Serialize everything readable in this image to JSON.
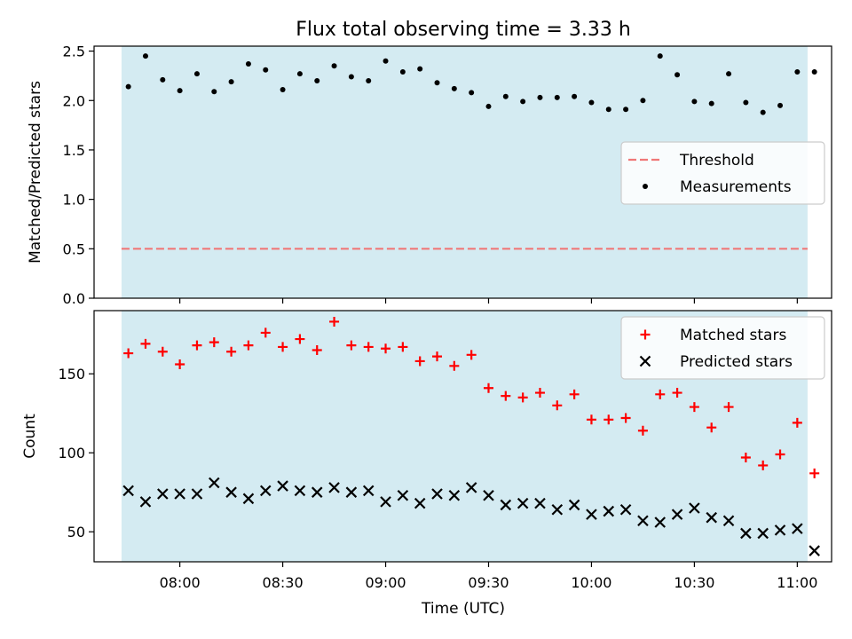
{
  "chart_data": {
    "title": "Flux total observing time = 3.33 h",
    "x_times": [
      "07:45",
      "07:50",
      "07:55",
      "08:00",
      "08:05",
      "08:10",
      "08:15",
      "08:20",
      "08:25",
      "08:30",
      "08:35",
      "08:40",
      "08:45",
      "08:50",
      "08:55",
      "09:00",
      "09:05",
      "09:10",
      "09:15",
      "09:20",
      "09:25",
      "09:30",
      "09:35",
      "09:40",
      "09:45",
      "09:50",
      "09:55",
      "10:00",
      "10:05",
      "10:10",
      "10:15",
      "10:20",
      "10:25",
      "10:30",
      "10:35",
      "10:40",
      "10:45",
      "10:50",
      "10:55",
      "11:00",
      "11:05"
    ],
    "observing_window": {
      "start": "07:43",
      "end": "11:03"
    },
    "x_range": [
      "07:35",
      "11:10"
    ],
    "xlabel": "Time (UTC)",
    "xticks": [
      "08:00",
      "08:30",
      "09:00",
      "09:30",
      "10:00",
      "10:30",
      "11:00"
    ],
    "panels": [
      {
        "type": "scatter",
        "ylabel": "Matched/Predicted stars",
        "ylim": [
          0,
          2.55
        ],
        "yticks": [
          "0.0",
          "0.5",
          "1.0",
          "1.5",
          "2.0",
          "2.5"
        ],
        "threshold": {
          "name": "Threshold",
          "value": 0.5,
          "color": "#f07878"
        },
        "legend_position": "center-right",
        "series": [
          {
            "name": "Measurements",
            "marker": "dot",
            "color": "#000000",
            "values": [
              2.14,
              2.45,
              2.21,
              2.1,
              2.27,
              2.09,
              2.19,
              2.37,
              2.31,
              2.11,
              2.27,
              2.2,
              2.35,
              2.24,
              2.2,
              2.4,
              2.29,
              2.32,
              2.18,
              2.12,
              2.08,
              1.94,
              2.04,
              1.99,
              2.03,
              2.03,
              2.04,
              1.98,
              1.91,
              1.91,
              2.0,
              2.45,
              2.26,
              1.99,
              1.97,
              2.27,
              1.98,
              1.88,
              1.95,
              2.29,
              2.29
            ]
          }
        ]
      },
      {
        "type": "scatter",
        "ylabel": "Count",
        "ylim": [
          31,
          190
        ],
        "yticks": [
          "50",
          "100",
          "150"
        ],
        "legend_position": "top-right",
        "series": [
          {
            "name": "Matched stars",
            "marker": "plus",
            "color": "#ff0000",
            "values": [
              163,
              169,
              164,
              156,
              168,
              170,
              164,
              168,
              176,
              167,
              172,
              165,
              183,
              168,
              167,
              166,
              167,
              158,
              161,
              155,
              162,
              141,
              136,
              135,
              138,
              130,
              137,
              121,
              121,
              122,
              114,
              137,
              138,
              129,
              116,
              129,
              97,
              92,
              99,
              119,
              87
            ]
          },
          {
            "name": "Predicted stars",
            "marker": "x",
            "color": "#000000",
            "values": [
              76,
              69,
              74,
              74,
              74,
              81,
              75,
              71,
              76,
              79,
              76,
              75,
              78,
              75,
              76,
              69,
              73,
              68,
              74,
              73,
              78,
              73,
              67,
              68,
              68,
              64,
              67,
              61,
              63,
              64,
              57,
              56,
              61,
              65,
              59,
              57,
              49,
              49,
              51,
              52,
              38
            ]
          }
        ]
      }
    ],
    "shading_color": "#add8e6"
  }
}
